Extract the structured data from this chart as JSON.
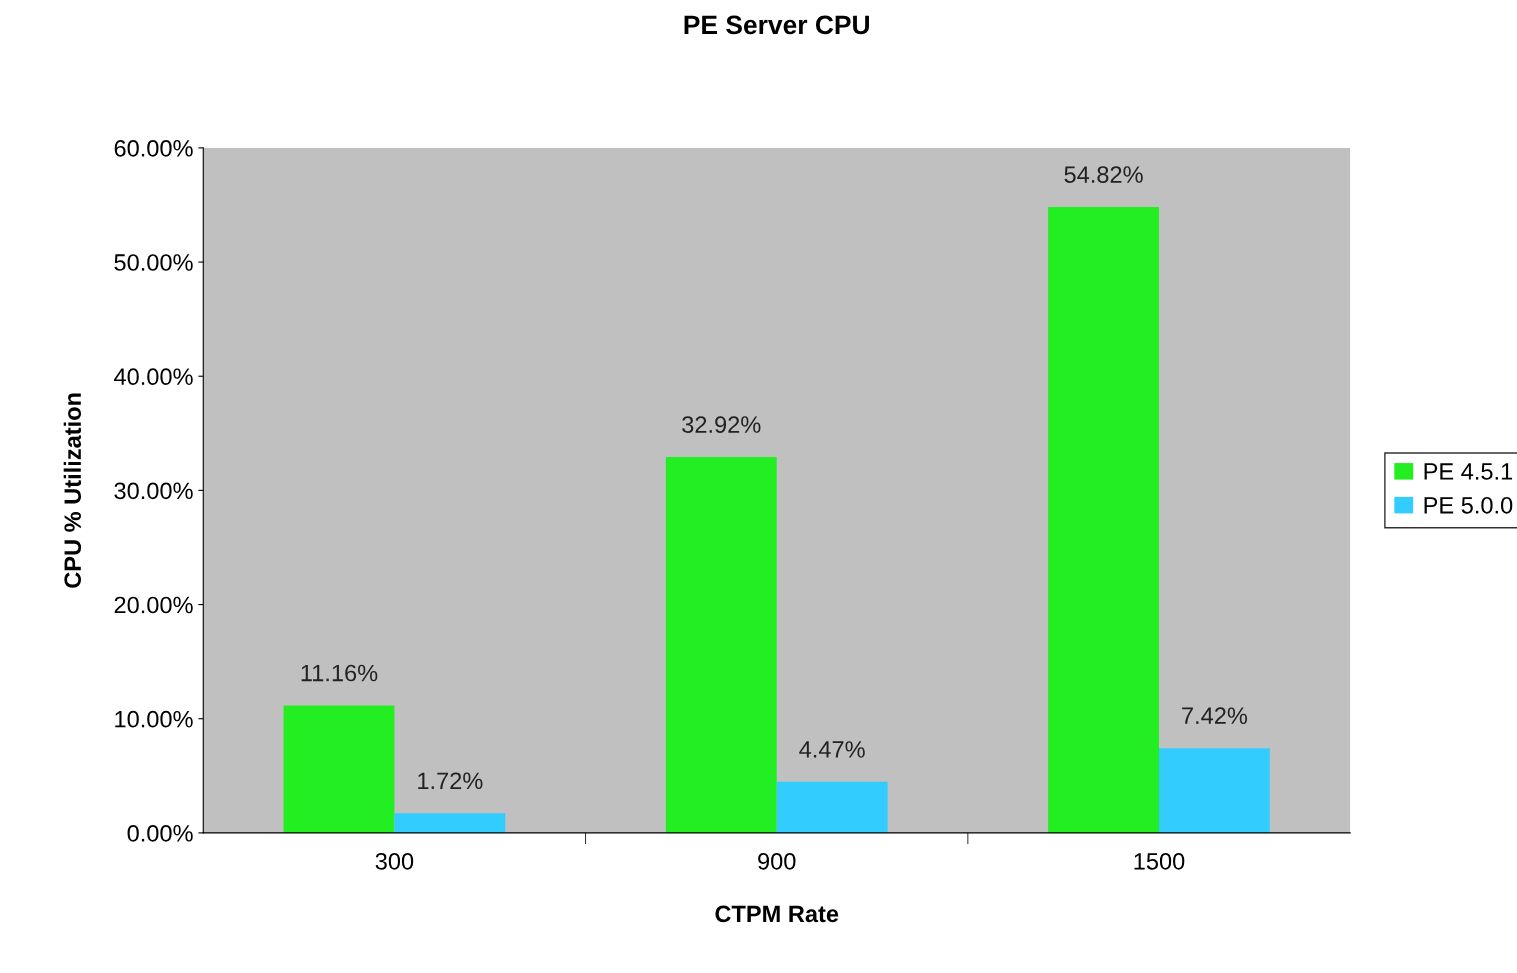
{
  "chart_data": {
    "type": "bar",
    "title": "PE Server CPU",
    "xlabel": "CTPM Rate",
    "ylabel": "CPU % Utilization",
    "categories": [
      "300",
      "900",
      "1500"
    ],
    "series": [
      {
        "name": "PE 4.5.1",
        "color": "#22ee22",
        "values": [
          11.16,
          32.92,
          54.82
        ],
        "value_labels": [
          "11.16%",
          "32.92%",
          "54.82%"
        ]
      },
      {
        "name": "PE 5.0.0",
        "color": "#33ccff",
        "values": [
          1.72,
          4.47,
          7.42
        ],
        "value_labels": [
          "1.72%",
          "4.47%",
          "7.42%"
        ]
      }
    ],
    "ylim": [
      0,
      60
    ],
    "yticks": [
      {
        "value": 0,
        "label": "0.00%"
      },
      {
        "value": 10,
        "label": "10.00%"
      },
      {
        "value": 20,
        "label": "20.00%"
      },
      {
        "value": 30,
        "label": "30.00%"
      },
      {
        "value": 40,
        "label": "40.00%"
      },
      {
        "value": 50,
        "label": "50.00%"
      },
      {
        "value": 60,
        "label": "60.00%"
      }
    ],
    "legend": "right",
    "grid": false
  }
}
